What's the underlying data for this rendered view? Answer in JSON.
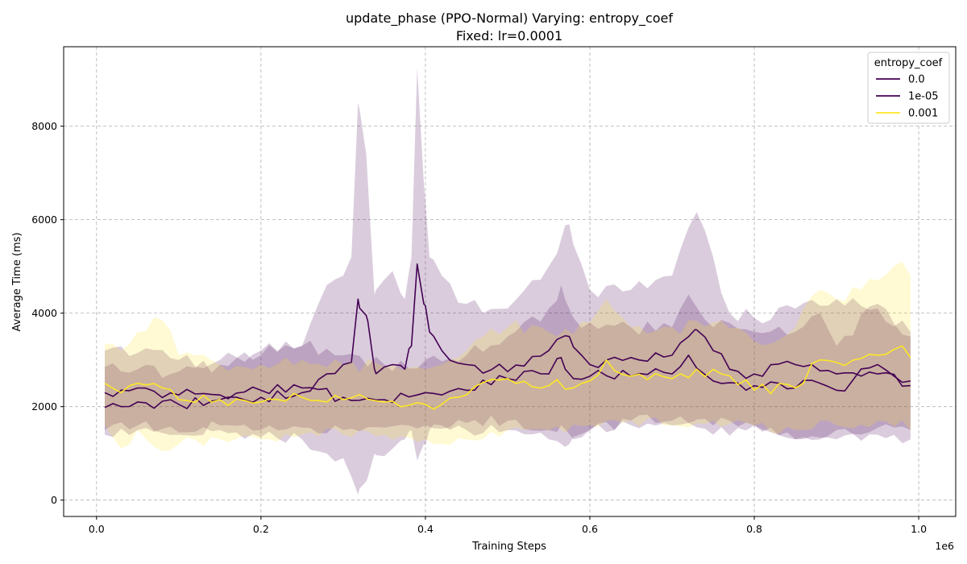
{
  "chart_data": {
    "type": "line",
    "title": "update_phase (PPO-Normal) Varying: entropy_coef",
    "subtitle": "Fixed: lr=0.0001",
    "xlabel": "Training Steps",
    "ylabel": "Average Time (ms)",
    "x_scale_label": "1e6",
    "xlim": [
      -0.04,
      1.045
    ],
    "ylim": [
      -350,
      9700
    ],
    "x_ticks": [
      0.0,
      0.2,
      0.4,
      0.6,
      0.8,
      1.0
    ],
    "x_tick_labels": [
      "0.0",
      "0.2",
      "0.4",
      "0.6",
      "0.8",
      "1.0"
    ],
    "y_ticks": [
      0,
      2000,
      4000,
      6000,
      8000
    ],
    "y_tick_labels": [
      "0",
      "2000",
      "4000",
      "6000",
      "8000"
    ],
    "grid": true,
    "legend": {
      "title": "entropy_coef",
      "position": "top-right"
    },
    "series": [
      {
        "name": "0.0",
        "color": "#440154",
        "band_opacity": 0.2,
        "anchors": [
          [
            0.01,
            1980,
            1400,
            2850
          ],
          [
            0.05,
            2100,
            1500,
            2800
          ],
          [
            0.1,
            2050,
            1450,
            2750
          ],
          [
            0.15,
            2150,
            1500,
            2900
          ],
          [
            0.2,
            2200,
            1350,
            3100
          ],
          [
            0.25,
            2300,
            1300,
            3300
          ],
          [
            0.28,
            2700,
            1000,
            4600
          ],
          [
            0.3,
            2900,
            900,
            4800
          ],
          [
            0.31,
            2950,
            500,
            5200
          ],
          [
            0.318,
            4300,
            120,
            8500
          ],
          [
            0.328,
            3950,
            400,
            7400
          ],
          [
            0.338,
            2800,
            1000,
            4400
          ],
          [
            0.36,
            2900,
            1100,
            4900
          ],
          [
            0.375,
            2800,
            1300,
            4300
          ],
          [
            0.383,
            3300,
            1500,
            5200
          ],
          [
            0.39,
            5050,
            850,
            9250
          ],
          [
            0.398,
            4200,
            1200,
            6800
          ],
          [
            0.405,
            3600,
            1500,
            5200
          ],
          [
            0.42,
            3200,
            1600,
            4800
          ],
          [
            0.45,
            2900,
            1500,
            4200
          ],
          [
            0.5,
            2750,
            1500,
            4100
          ],
          [
            0.55,
            3200,
            1300,
            5000
          ],
          [
            0.575,
            3500,
            1200,
            5900
          ],
          [
            0.6,
            2900,
            1500,
            4500
          ],
          [
            0.65,
            3050,
            1600,
            4500
          ],
          [
            0.7,
            3100,
            1600,
            4800
          ],
          [
            0.728,
            3650,
            1700,
            6100
          ],
          [
            0.75,
            3200,
            1600,
            5200
          ],
          [
            0.77,
            2800,
            1700,
            4000
          ],
          [
            0.8,
            2700,
            1600,
            3900
          ],
          [
            0.85,
            2900,
            1300,
            4100
          ],
          [
            0.9,
            2700,
            1300,
            4300
          ],
          [
            0.95,
            2700,
            1400,
            4100
          ],
          [
            0.99,
            2450,
            1300,
            3600
          ]
        ]
      },
      {
        "name": "1e-05",
        "color": "#440154",
        "band_opacity": 0.2,
        "anchors": [
          [
            0.01,
            2300,
            1500,
            3200
          ],
          [
            0.05,
            2400,
            1600,
            3150
          ],
          [
            0.1,
            2250,
            1400,
            3000
          ],
          [
            0.15,
            2250,
            1600,
            3000
          ],
          [
            0.2,
            2350,
            1500,
            3200
          ],
          [
            0.25,
            2400,
            1550,
            3300
          ],
          [
            0.3,
            2200,
            1500,
            3100
          ],
          [
            0.35,
            2150,
            1550,
            2900
          ],
          [
            0.4,
            2300,
            1600,
            3000
          ],
          [
            0.45,
            2350,
            1650,
            3100
          ],
          [
            0.5,
            2600,
            1700,
            3500
          ],
          [
            0.55,
            2700,
            1500,
            4100
          ],
          [
            0.565,
            3050,
            1600,
            4600
          ],
          [
            0.58,
            2600,
            1300,
            3900
          ],
          [
            0.6,
            2650,
            1500,
            3800
          ],
          [
            0.65,
            2650,
            1700,
            3700
          ],
          [
            0.7,
            2700,
            1700,
            3700
          ],
          [
            0.72,
            3100,
            1650,
            4400
          ],
          [
            0.75,
            2550,
            1400,
            3700
          ],
          [
            0.8,
            2450,
            1600,
            3600
          ],
          [
            0.85,
            2400,
            1300,
            3600
          ],
          [
            0.88,
            2500,
            1300,
            4000
          ],
          [
            0.9,
            2350,
            1500,
            3300
          ],
          [
            0.95,
            2900,
            1550,
            4200
          ],
          [
            0.99,
            2550,
            1500,
            3500
          ]
        ]
      },
      {
        "name": "0.001",
        "color": "#fde725",
        "band_opacity": 0.2,
        "anchors": [
          [
            0.01,
            2500,
            1600,
            3350
          ],
          [
            0.03,
            2300,
            1100,
            3200
          ],
          [
            0.05,
            2500,
            1500,
            3600
          ],
          [
            0.08,
            2400,
            1050,
            3850
          ],
          [
            0.1,
            2150,
            1200,
            3100
          ],
          [
            0.15,
            2150,
            1300,
            2900
          ],
          [
            0.2,
            2100,
            1300,
            2900
          ],
          [
            0.25,
            2200,
            1400,
            3000
          ],
          [
            0.3,
            2150,
            1400,
            2900
          ],
          [
            0.35,
            2100,
            1400,
            2850
          ],
          [
            0.4,
            2050,
            1300,
            2800
          ],
          [
            0.42,
            2050,
            1200,
            2900
          ],
          [
            0.45,
            2250,
            1300,
            3200
          ],
          [
            0.5,
            2600,
            1500,
            3700
          ],
          [
            0.55,
            2450,
            1500,
            3600
          ],
          [
            0.6,
            2550,
            1600,
            3800
          ],
          [
            0.62,
            3000,
            1700,
            4300
          ],
          [
            0.65,
            2650,
            1700,
            3700
          ],
          [
            0.7,
            2600,
            1600,
            3700
          ],
          [
            0.75,
            2800,
            1700,
            3800
          ],
          [
            0.8,
            2350,
            1600,
            3400
          ],
          [
            0.85,
            2400,
            1500,
            3700
          ],
          [
            0.88,
            3000,
            1700,
            4500
          ],
          [
            0.9,
            2950,
            1600,
            4300
          ],
          [
            0.95,
            3100,
            1700,
            4700
          ],
          [
            0.98,
            3300,
            1700,
            5100
          ],
          [
            0.99,
            3050,
            1500,
            4800
          ]
        ]
      }
    ]
  }
}
